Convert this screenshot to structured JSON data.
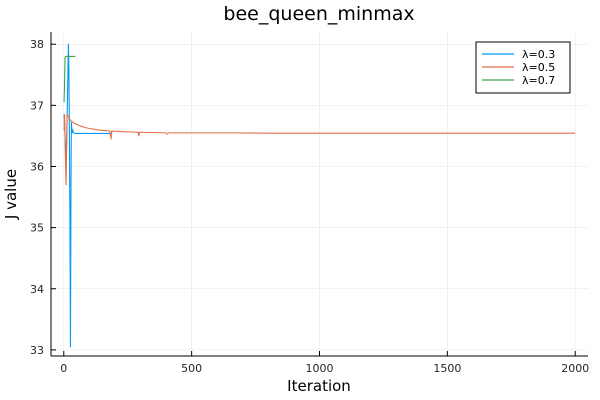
{
  "chart_data": {
    "type": "line",
    "title": "bee_queen_minmax",
    "xlabel": "Iteration",
    "ylabel": "J value",
    "xlim": [
      -50,
      2050
    ],
    "ylim": [
      32.9,
      38.2
    ],
    "x_ticks": [
      0,
      500,
      1000,
      1500,
      2000
    ],
    "y_ticks": [
      33,
      34,
      35,
      36,
      37,
      38
    ],
    "grid": true,
    "legend_position": "top-right",
    "series": [
      {
        "name": "λ=0.3",
        "color": "#009af9",
        "points": [
          [
            1,
            36.85
          ],
          [
            4,
            36.6
          ],
          [
            7,
            36.3
          ],
          [
            10,
            36.1
          ],
          [
            13,
            36.8
          ],
          [
            16,
            37.5
          ],
          [
            18,
            38.0
          ],
          [
            20,
            37.6
          ],
          [
            22,
            36.5
          ],
          [
            24,
            35.2
          ],
          [
            26,
            33.05
          ],
          [
            27,
            34.2
          ],
          [
            28,
            35.6
          ],
          [
            29,
            36.4
          ],
          [
            30,
            36.72
          ],
          [
            32,
            36.55
          ],
          [
            35,
            36.6
          ],
          [
            38,
            36.55
          ],
          [
            45,
            36.54
          ],
          [
            60,
            36.54
          ],
          [
            100,
            36.54
          ],
          [
            140,
            36.54
          ],
          [
            180,
            36.54
          ],
          [
            190,
            36.55
          ]
        ]
      },
      {
        "name": "λ=0.5",
        "color": "#e26f46",
        "points": [
          [
            1,
            36.6
          ],
          [
            3,
            36.85
          ],
          [
            6,
            36.2
          ],
          [
            9,
            35.7
          ],
          [
            11,
            36.3
          ],
          [
            13,
            36.84
          ],
          [
            18,
            36.82
          ],
          [
            25,
            36.76
          ],
          [
            40,
            36.71
          ],
          [
            60,
            36.67
          ],
          [
            90,
            36.63
          ],
          [
            130,
            36.6
          ],
          [
            180,
            36.58
          ],
          [
            185,
            36.45
          ],
          [
            187,
            36.58
          ],
          [
            230,
            36.57
          ],
          [
            290,
            36.56
          ],
          [
            293,
            36.5
          ],
          [
            296,
            36.56
          ],
          [
            400,
            36.55
          ],
          [
            405,
            36.53
          ],
          [
            410,
            36.55
          ],
          [
            530,
            36.55
          ],
          [
            660,
            36.55
          ],
          [
            800,
            36.545
          ],
          [
            1000,
            36.545
          ],
          [
            1500,
            36.545
          ],
          [
            2000,
            36.545
          ]
        ]
      },
      {
        "name": "λ=0.7",
        "color": "#3da44d",
        "points": [
          [
            1,
            37.05
          ],
          [
            3,
            37.35
          ],
          [
            5,
            37.78
          ],
          [
            8,
            37.8
          ],
          [
            12,
            37.8
          ],
          [
            20,
            37.8
          ],
          [
            30,
            37.8
          ],
          [
            40,
            37.8
          ],
          [
            45,
            37.8
          ]
        ]
      }
    ]
  }
}
